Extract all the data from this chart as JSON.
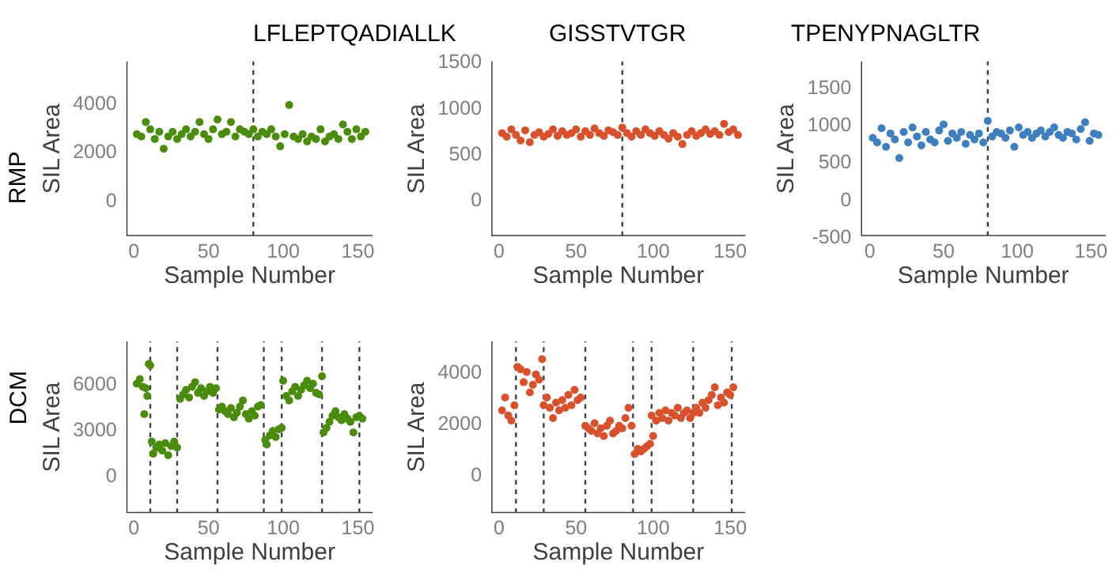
{
  "chart_data": [
    {
      "type": "scatter",
      "title": "LFLEPTQADIALLK",
      "xlabel": "Sample Number",
      "ylabel": "SIL Area",
      "annotations": [
        "RMP"
      ],
      "color": "#4a8c0b",
      "marker": "circle",
      "grid": false,
      "x": [
        2,
        5,
        8,
        11,
        14,
        17,
        20,
        23,
        26,
        29,
        32,
        35,
        38,
        41,
        44,
        47,
        50,
        53,
        56,
        59,
        62,
        65,
        68,
        71,
        74,
        77,
        80,
        83,
        86,
        89,
        92,
        95,
        98,
        101,
        104,
        107,
        110,
        113,
        116,
        119,
        122,
        125,
        128,
        131,
        134,
        137,
        140,
        143,
        146,
        149,
        152,
        155
      ],
      "values": [
        2700,
        2600,
        3200,
        2900,
        2500,
        2800,
        2100,
        2600,
        2800,
        2500,
        2700,
        2900,
        2600,
        2800,
        3200,
        2700,
        2500,
        2900,
        3300,
        2700,
        2800,
        3200,
        2600,
        2900,
        2800,
        2700,
        2900,
        2600,
        2800,
        2700,
        2900,
        2600,
        2200,
        2700,
        3900,
        2600,
        2500,
        2700,
        2400,
        2600,
        2500,
        2900,
        2400,
        2600,
        2700,
        2500,
        3100,
        2800,
        2500,
        2900,
        2600,
        2800
      ],
      "xlim": [
        -5,
        160
      ],
      "ylim": [
        -1500,
        5700
      ],
      "xticks": [
        0,
        50,
        100,
        150
      ],
      "yticks": [
        0,
        2000,
        4000
      ],
      "ref_lines": [
        {
          "axis": "x",
          "value": 80,
          "line_style": "dotted",
          "color": "#404040"
        }
      ]
    },
    {
      "type": "scatter",
      "title": "GISSTVTGR",
      "xlabel": "Sample Number",
      "ylabel": "SIL Area",
      "color": "#d9512c",
      "marker": "circle",
      "grid": false,
      "x": [
        2,
        5,
        8,
        11,
        14,
        17,
        20,
        23,
        26,
        29,
        32,
        35,
        38,
        41,
        44,
        47,
        50,
        53,
        56,
        59,
        62,
        65,
        68,
        71,
        74,
        77,
        80,
        83,
        86,
        89,
        92,
        95,
        98,
        101,
        104,
        107,
        110,
        113,
        116,
        119,
        122,
        125,
        128,
        131,
        134,
        137,
        140,
        143,
        146,
        149,
        152,
        155
      ],
      "values": [
        720,
        680,
        760,
        700,
        640,
        750,
        620,
        700,
        730,
        680,
        710,
        760,
        690,
        740,
        700,
        720,
        760,
        680,
        740,
        700,
        770,
        720,
        690,
        750,
        730,
        700,
        780,
        720,
        680,
        740,
        700,
        760,
        720,
        690,
        740,
        700,
        660,
        720,
        680,
        600,
        700,
        740,
        690,
        720,
        760,
        710,
        740,
        700,
        820,
        730,
        760,
        700
      ],
      "xlim": [
        -5,
        160
      ],
      "ylim": [
        -400,
        1500
      ],
      "xticks": [
        0,
        50,
        100,
        150
      ],
      "yticks": [
        0,
        500,
        1000,
        1500
      ],
      "ref_lines": [
        {
          "axis": "x",
          "value": 80,
          "line_style": "dotted",
          "color": "#404040"
        }
      ]
    },
    {
      "type": "scatter",
      "title": "TPENYPNAGLTR",
      "xlabel": "Sample Number",
      "ylabel": "SIL Area",
      "color": "#3f7fbf",
      "marker": "circle",
      "grid": false,
      "x": [
        2,
        5,
        8,
        11,
        14,
        17,
        20,
        23,
        26,
        29,
        32,
        35,
        38,
        41,
        44,
        47,
        50,
        53,
        56,
        59,
        62,
        65,
        68,
        71,
        74,
        77,
        80,
        83,
        86,
        89,
        92,
        95,
        98,
        101,
        104,
        107,
        110,
        113,
        116,
        119,
        122,
        125,
        128,
        131,
        134,
        137,
        140,
        143,
        146,
        149,
        152,
        155
      ],
      "values": [
        820,
        760,
        950,
        700,
        880,
        800,
        550,
        900,
        760,
        960,
        840,
        720,
        900,
        800,
        760,
        920,
        1000,
        780,
        880,
        820,
        900,
        740,
        860,
        800,
        880,
        760,
        1050,
        840,
        900,
        880,
        820,
        920,
        700,
        960,
        860,
        900,
        820,
        880,
        920,
        840,
        900,
        960,
        860,
        820,
        900,
        880,
        800,
        940,
        1030,
        780,
        880,
        860
      ],
      "xlim": [
        -6,
        160
      ],
      "ylim": [
        -500,
        1850
      ],
      "xticks": [
        0,
        50,
        100,
        150
      ],
      "yticks": [
        -500,
        0,
        500,
        1000,
        1500
      ],
      "ref_lines": [
        {
          "axis": "x",
          "value": 80,
          "line_style": "dotted",
          "color": "#404040"
        }
      ]
    },
    {
      "type": "scatter",
      "xlabel": "Sample Number",
      "ylabel": "SIL Area",
      "annotations": [
        "DCM"
      ],
      "color": "#4a8c0b",
      "marker": "circle",
      "grid": false,
      "x": [
        2,
        4,
        6,
        7,
        8,
        9,
        10,
        11,
        12,
        13,
        15,
        17,
        19,
        21,
        23,
        25,
        27,
        29,
        31,
        33,
        35,
        37,
        39,
        41,
        43,
        45,
        47,
        49,
        51,
        53,
        55,
        57,
        59,
        61,
        63,
        65,
        67,
        69,
        71,
        73,
        75,
        77,
        79,
        81,
        83,
        85,
        88,
        89,
        91,
        93,
        95,
        97,
        99,
        100,
        102,
        104,
        106,
        108,
        110,
        112,
        114,
        116,
        118,
        120,
        122,
        124,
        126,
        127,
        129,
        131,
        133,
        135,
        137,
        139,
        141,
        143,
        145,
        147,
        149,
        151,
        153
      ],
      "values": [
        6000,
        6300,
        5800,
        4000,
        5700,
        5200,
        7300,
        7200,
        2200,
        1400,
        1800,
        2000,
        1600,
        2100,
        1300,
        1900,
        2200,
        1800,
        5000,
        5300,
        5600,
        5100,
        5800,
        6100,
        5400,
        5700,
        5200,
        5500,
        5800,
        5400,
        5700,
        4300,
        4500,
        4200,
        4000,
        4400,
        3800,
        4100,
        4500,
        4900,
        4000,
        3700,
        4200,
        3900,
        4500,
        4600,
        2300,
        2000,
        2600,
        2900,
        2500,
        3000,
        3100,
        6200,
        5200,
        4900,
        5500,
        5800,
        5200,
        5600,
        5900,
        6200,
        5700,
        6000,
        5400,
        5300,
        6500,
        2800,
        3100,
        3500,
        3900,
        4200,
        3800,
        3600,
        4000,
        3700,
        3500,
        2800,
        3800,
        3900,
        3700
      ],
      "xlim": [
        -5,
        160
      ],
      "ylim": [
        -2500,
        8800
      ],
      "xticks": [
        0,
        50,
        100,
        150
      ],
      "yticks": [
        0,
        3000,
        6000
      ],
      "ref_lines": [
        {
          "axis": "x",
          "value": 11,
          "line_style": "dotted",
          "color": "#404040"
        },
        {
          "axis": "x",
          "value": 29,
          "line_style": "dotted",
          "color": "#404040"
        },
        {
          "axis": "x",
          "value": 56,
          "line_style": "dotted",
          "color": "#404040"
        },
        {
          "axis": "x",
          "value": 87,
          "line_style": "dotted",
          "color": "#404040"
        },
        {
          "axis": "x",
          "value": 99,
          "line_style": "dotted",
          "color": "#404040"
        },
        {
          "axis": "x",
          "value": 126,
          "line_style": "dotted",
          "color": "#404040"
        },
        {
          "axis": "x",
          "value": 151,
          "line_style": "dotted",
          "color": "#404040"
        }
      ]
    },
    {
      "type": "scatter",
      "xlabel": "Sample Number",
      "ylabel": "SIL Area",
      "color": "#d9512c",
      "marker": "circle",
      "grid": false,
      "x": [
        2,
        4,
        6,
        8,
        10,
        12,
        14,
        16,
        18,
        20,
        22,
        24,
        26,
        28,
        29,
        31,
        33,
        35,
        37,
        39,
        41,
        43,
        45,
        47,
        49,
        51,
        53,
        56,
        58,
        60,
        62,
        64,
        66,
        68,
        70,
        72,
        74,
        76,
        78,
        80,
        82,
        84,
        86,
        88,
        90,
        92,
        94,
        96,
        98,
        99,
        100,
        102,
        104,
        106,
        108,
        110,
        112,
        114,
        116,
        118,
        120,
        122,
        124,
        126,
        128,
        130,
        132,
        134,
        136,
        138,
        140,
        142,
        144,
        146,
        148,
        150,
        152
      ],
      "values": [
        2500,
        3000,
        2300,
        2100,
        2700,
        4200,
        4100,
        3600,
        4000,
        3200,
        3500,
        3900,
        3700,
        4500,
        2700,
        3000,
        2600,
        2200,
        2800,
        2500,
        2900,
        2600,
        3100,
        2700,
        3300,
        2900,
        3000,
        1900,
        1800,
        1700,
        2000,
        1600,
        1800,
        1500,
        1900,
        2100,
        1600,
        1700,
        1900,
        1800,
        2200,
        2600,
        1900,
        800,
        1000,
        900,
        1000,
        1100,
        1200,
        2300,
        1500,
        2100,
        2400,
        2200,
        2500,
        2100,
        2400,
        2300,
        2600,
        2200,
        2400,
        2500,
        2200,
        2400,
        2600,
        2400,
        2800,
        2600,
        2900,
        3100,
        3400,
        2700,
        3000,
        2800,
        3200,
        3100,
        3400
      ],
      "xlim": [
        -5,
        160
      ],
      "ylim": [
        -1500,
        5200
      ],
      "xticks": [
        0,
        50,
        100,
        150
      ],
      "yticks": [
        0,
        2000,
        4000
      ],
      "ref_lines": [
        {
          "axis": "x",
          "value": 11,
          "line_style": "dotted",
          "color": "#404040"
        },
        {
          "axis": "x",
          "value": 29,
          "line_style": "dotted",
          "color": "#404040"
        },
        {
          "axis": "x",
          "value": 56,
          "line_style": "dotted",
          "color": "#404040"
        },
        {
          "axis": "x",
          "value": 87,
          "line_style": "dotted",
          "color": "#404040"
        },
        {
          "axis": "x",
          "value": 99,
          "line_style": "dotted",
          "color": "#404040"
        },
        {
          "axis": "x",
          "value": 126,
          "line_style": "dotted",
          "color": "#404040"
        },
        {
          "axis": "x",
          "value": 151,
          "line_style": "dotted",
          "color": "#404040"
        }
      ]
    }
  ]
}
